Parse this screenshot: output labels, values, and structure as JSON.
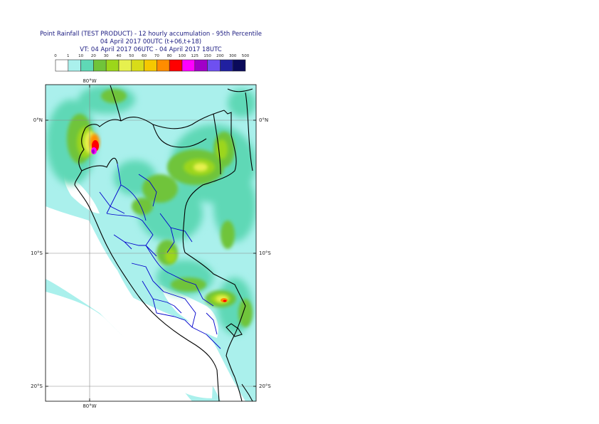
{
  "title": {
    "line1": "Point Rainfall (TEST PRODUCT) - 12 hourly accumulation - 95th Percentile",
    "line2": "04 April 2017 00UTC (t+06,t+18)",
    "line3": "VT: 04 April 2017 06UTC - 04 April 2017 18UTC"
  },
  "legend": {
    "thresholds": [
      "0",
      "1",
      "10",
      "20",
      "30",
      "40",
      "50",
      "60",
      "70",
      "80",
      "100",
      "125",
      "150",
      "200",
      "300",
      "500"
    ],
    "colors": [
      "#ffffff",
      "#aaf0ec",
      "#5fd8b6",
      "#70c43a",
      "#9cd61a",
      "#e6f04e",
      "#d8dc18",
      "#f6c800",
      "#ff8c00",
      "#ff0000",
      "#ff00ff",
      "#a000c8",
      "#6e50f0",
      "#2020a0",
      "#0a0a5a"
    ]
  },
  "map": {
    "lon_labels": {
      "top": "80°W",
      "bottom": "80°W"
    },
    "lat_labels": [
      "0°N",
      "10°S",
      "20°S"
    ],
    "colors": {
      "ocean": "#aaf0ec",
      "dry": "#ffffff",
      "land_light": "#aaf0ec",
      "land_med": "#5fd8b6",
      "green": "#70c43a",
      "yellow_green": "#9cd61a",
      "yellow": "#e6f04e",
      "orange": "#ff8c00",
      "red": "#ff0000",
      "magenta": "#ff00ff",
      "purple": "#a000c8",
      "coast": "#000000",
      "regions": "#0000cc",
      "grid": "#888888"
    }
  }
}
